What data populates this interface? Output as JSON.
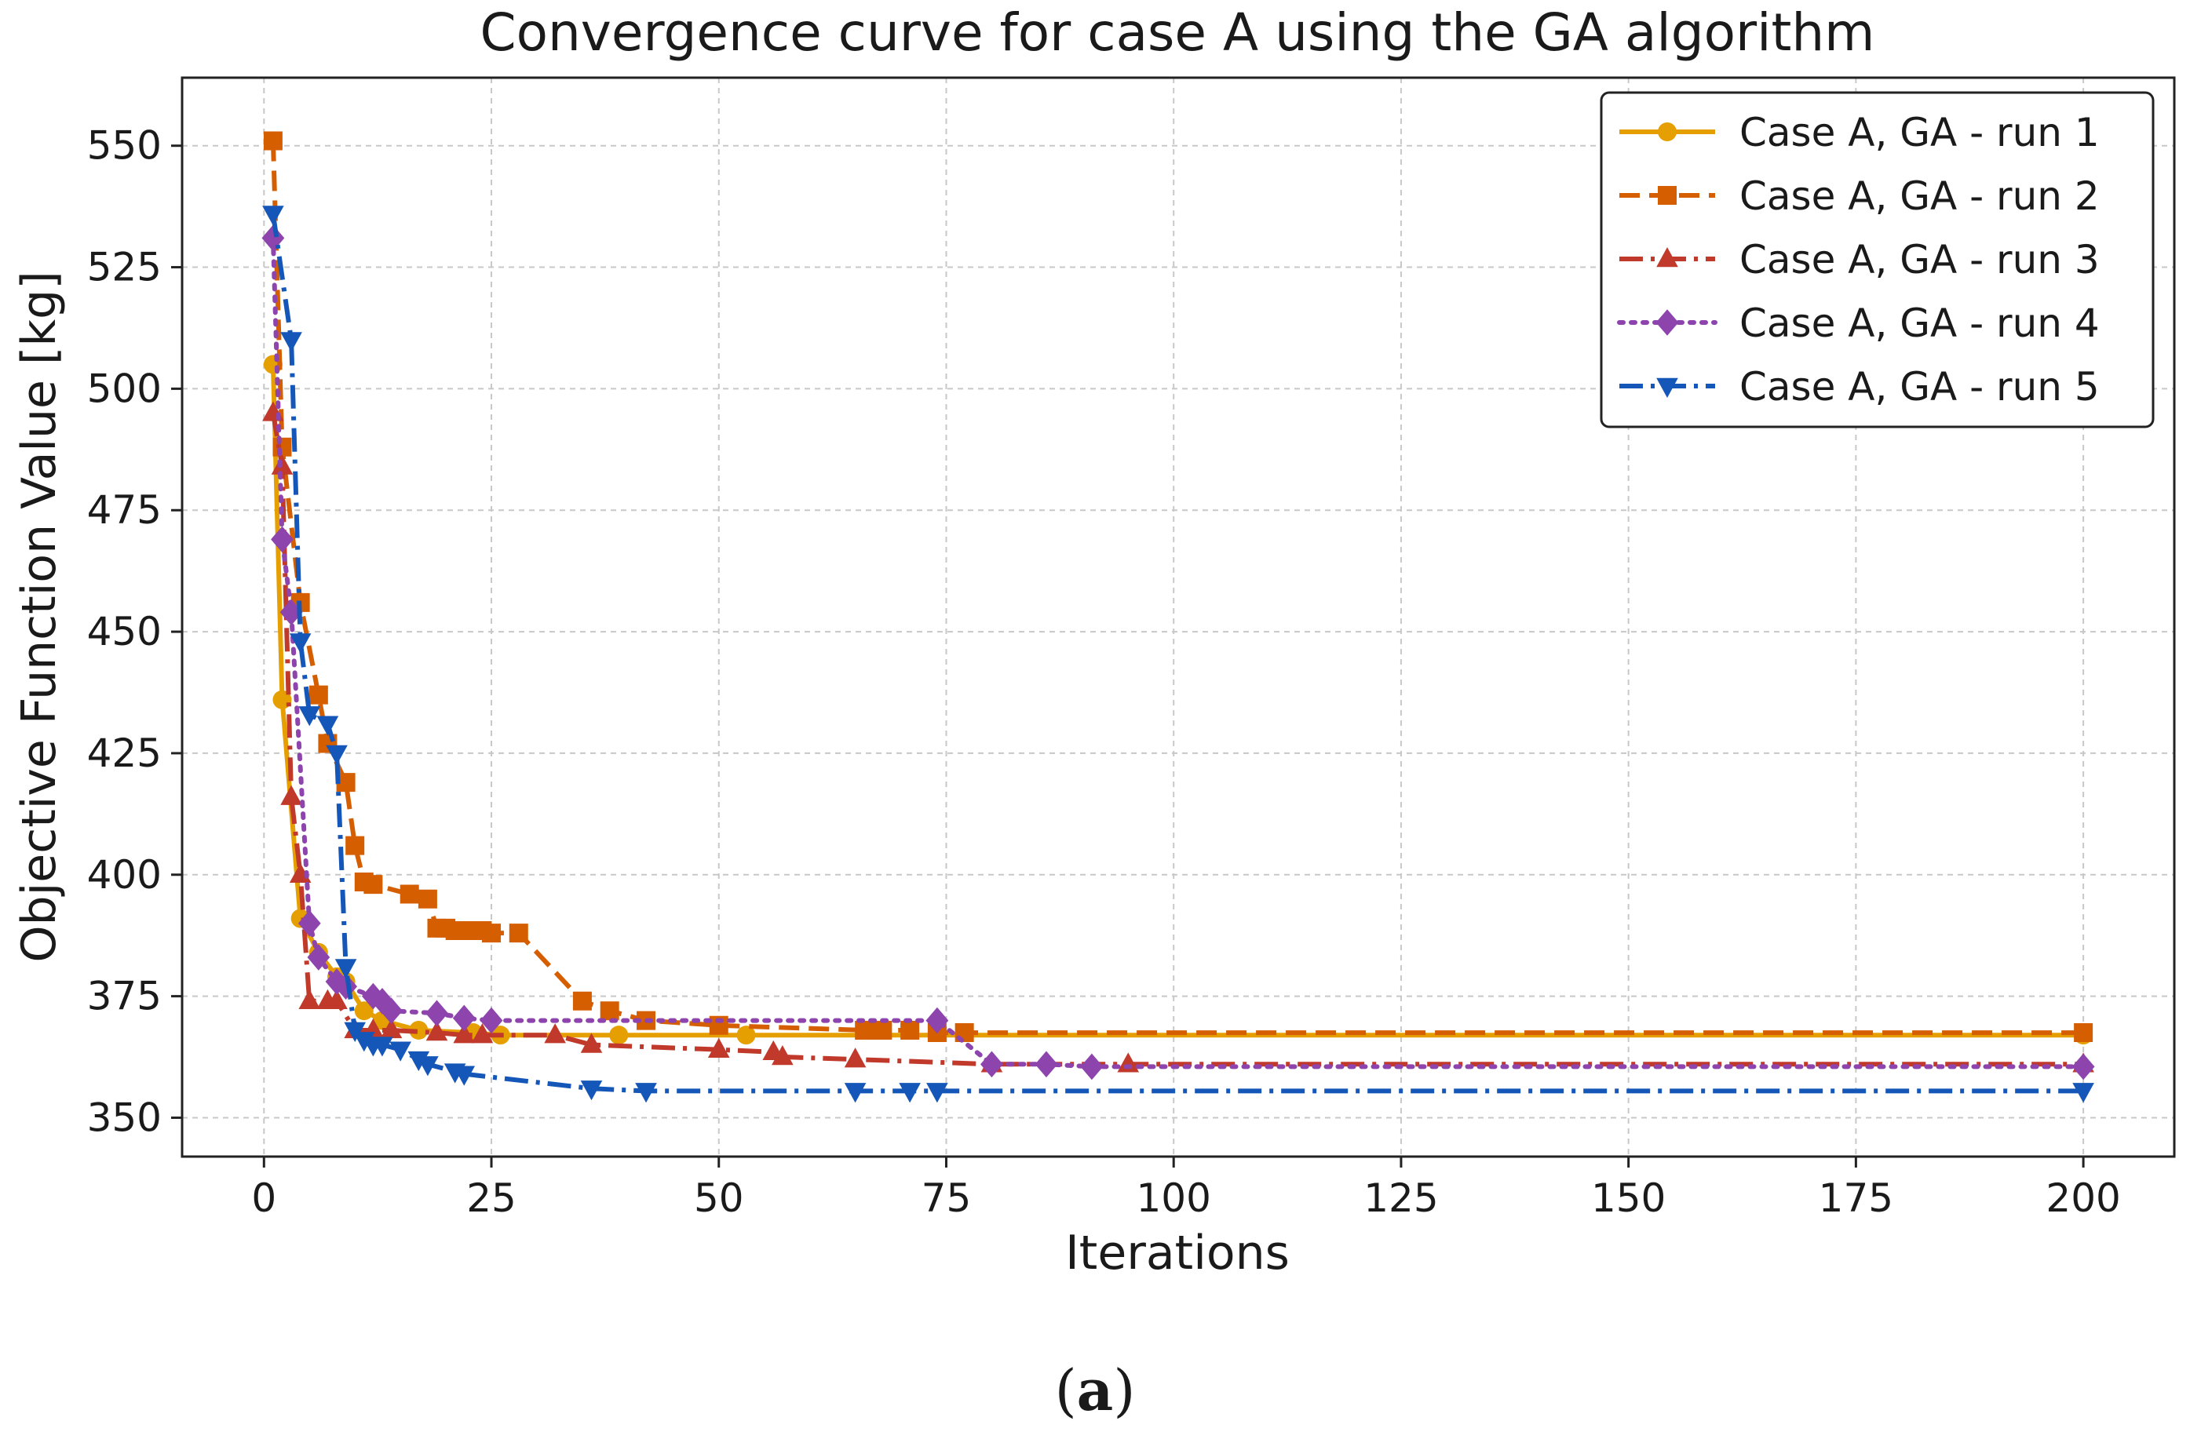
{
  "caption": {
    "open": "(",
    "letter": "a",
    "close": ")"
  },
  "chart_data": {
    "type": "line",
    "title": "Convergence curve for case A using the GA algorithm",
    "xlabel": "Iterations",
    "ylabel": "Objective Function Value [kg]",
    "xlim": [
      -9,
      210
    ],
    "ylim": [
      342,
      564
    ],
    "xticks": [
      0,
      25,
      50,
      75,
      100,
      125,
      150,
      175,
      200
    ],
    "yticks": [
      350,
      375,
      400,
      425,
      450,
      475,
      500,
      525,
      550
    ],
    "grid": true,
    "legend_position": "top-right",
    "series": [
      {
        "name": "Case A, GA - run 1",
        "color": "#e69f00",
        "dash": "solid",
        "marker": "circle",
        "x": [
          1,
          2,
          4,
          6,
          8,
          9,
          11,
          13,
          17,
          23,
          26,
          39,
          53,
          200
        ],
        "y": [
          505,
          436,
          391,
          384,
          379,
          378,
          372,
          370,
          368,
          367.5,
          367,
          367,
          367,
          367
        ]
      },
      {
        "name": "Case A, GA - run 2",
        "color": "#d55e00",
        "dash": "dashed",
        "marker": "square",
        "x": [
          1,
          2,
          4,
          6,
          7,
          9,
          10,
          11,
          12,
          16,
          18,
          19,
          20,
          21,
          22,
          24,
          25,
          28,
          35,
          38,
          42,
          50,
          66,
          67,
          68,
          71,
          74,
          77,
          200
        ],
        "y": [
          551,
          488,
          456,
          437,
          427,
          419,
          406,
          398.5,
          398,
          396,
          395,
          389,
          389,
          388.5,
          388.5,
          388.5,
          388,
          388,
          374,
          372,
          370,
          369,
          368,
          368,
          368,
          368,
          367.5,
          367.5,
          367.5
        ]
      },
      {
        "name": "Case A, GA - run 3",
        "color": "#c0392b",
        "dash": "dashdot",
        "marker": "triangle-up",
        "x": [
          1,
          2,
          3,
          4,
          5,
          7,
          8,
          10,
          12,
          14,
          19,
          22,
          24,
          32,
          36,
          50,
          56,
          57,
          65,
          80,
          95,
          200
        ],
        "y": [
          495,
          484,
          416,
          400,
          374,
          374,
          374,
          368,
          368,
          368,
          367.5,
          367,
          367,
          367,
          365,
          364,
          363.5,
          362.5,
          362,
          361,
          361,
          361
        ]
      },
      {
        "name": "Case A, GA - run 4",
        "color": "#8e44ad",
        "dash": "dotted",
        "marker": "diamond",
        "x": [
          1,
          2,
          3,
          5,
          6,
          8,
          9,
          12,
          13,
          14,
          19,
          22,
          25,
          74,
          80,
          86,
          91,
          200
        ],
        "y": [
          531,
          469,
          454,
          390,
          383,
          378,
          377,
          375,
          374,
          372,
          371.5,
          370.5,
          370,
          370,
          361,
          361,
          360.5,
          360.5
        ]
      },
      {
        "name": "Case A, GA - run 5",
        "color": "#1557b8",
        "dash": "dashdot",
        "marker": "triangle-down",
        "x": [
          1,
          3,
          4,
          5,
          7,
          8,
          9,
          10,
          11,
          12,
          13,
          15,
          17,
          18,
          21,
          22,
          36,
          42,
          65,
          71,
          74,
          200
        ],
        "y": [
          536,
          510,
          448,
          433,
          431,
          425,
          381,
          368,
          366,
          365,
          365,
          364,
          362,
          361,
          359.5,
          359,
          356,
          355.5,
          355.5,
          355.5,
          355.5,
          355.5
        ]
      }
    ]
  }
}
